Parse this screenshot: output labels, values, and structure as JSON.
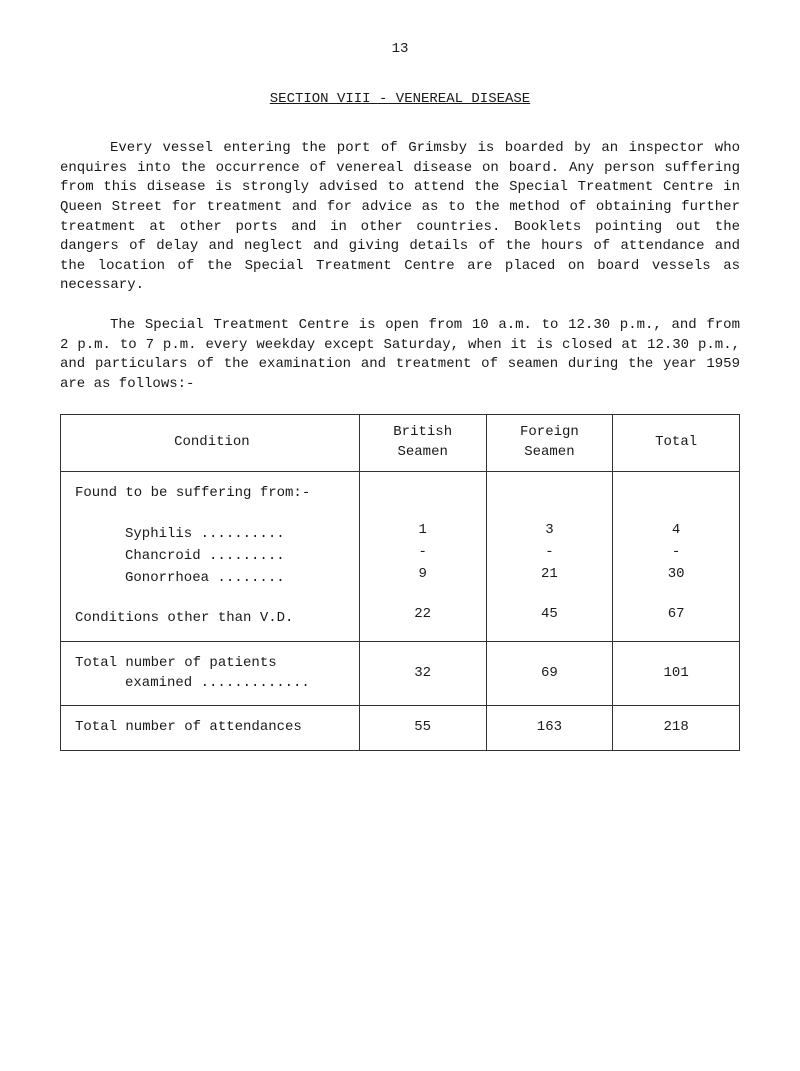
{
  "page_number": "13",
  "section_title": "SECTION VIII - VENEREAL DISEASE",
  "para1": "Every vessel entering the port of Grimsby is boarded by an inspector who enquires into the occurrence of venereal disease on board.  Any person suffering from this disease is strongly advised to attend the Special Treatment Centre in Queen Street for treatment and for advice as to the method of obtaining further treatment at other ports and in other countries.  Booklets pointing out the dangers of delay and neglect and giving details of the hours of attendance and the location of the Special Treatment Centre are placed on board vessels as necessary.",
  "para2": "The Special Treatment Centre is open from 10 a.m. to 12.30 p.m., and from 2 p.m. to 7 p.m. every weekday except Saturday, when it is closed at 12.30 p.m., and particulars of the examination and treatment of seamen during the year 1959 are as follows:-",
  "table": {
    "headers": {
      "col1": "Condition",
      "col2": "British Seamen",
      "col3": "Foreign Seamen",
      "col4": "Total"
    },
    "block1": {
      "intro": "Found to be suffering from:-",
      "row_syphilis": {
        "label": "Syphilis ..........",
        "c1": "1",
        "c2": "3",
        "c3": "4"
      },
      "row_chancroid": {
        "label": "Chancroid .........",
        "c1": "-",
        "c2": "-",
        "c3": "-"
      },
      "row_gonorrhoea": {
        "label": "Gonorrhoea ........",
        "c1": "9",
        "c2": "21",
        "c3": "30"
      },
      "row_other": {
        "label": "Conditions other than V.D.",
        "c1": "22",
        "c2": "45",
        "c3": "67"
      }
    },
    "block2": {
      "label_line1": "Total number of patients",
      "label_line2": "examined .............",
      "c1": "32",
      "c2": "69",
      "c3": "101"
    },
    "block3": {
      "label": "Total number of attendances",
      "c1": "55",
      "c2": "163",
      "c3": "218"
    }
  }
}
